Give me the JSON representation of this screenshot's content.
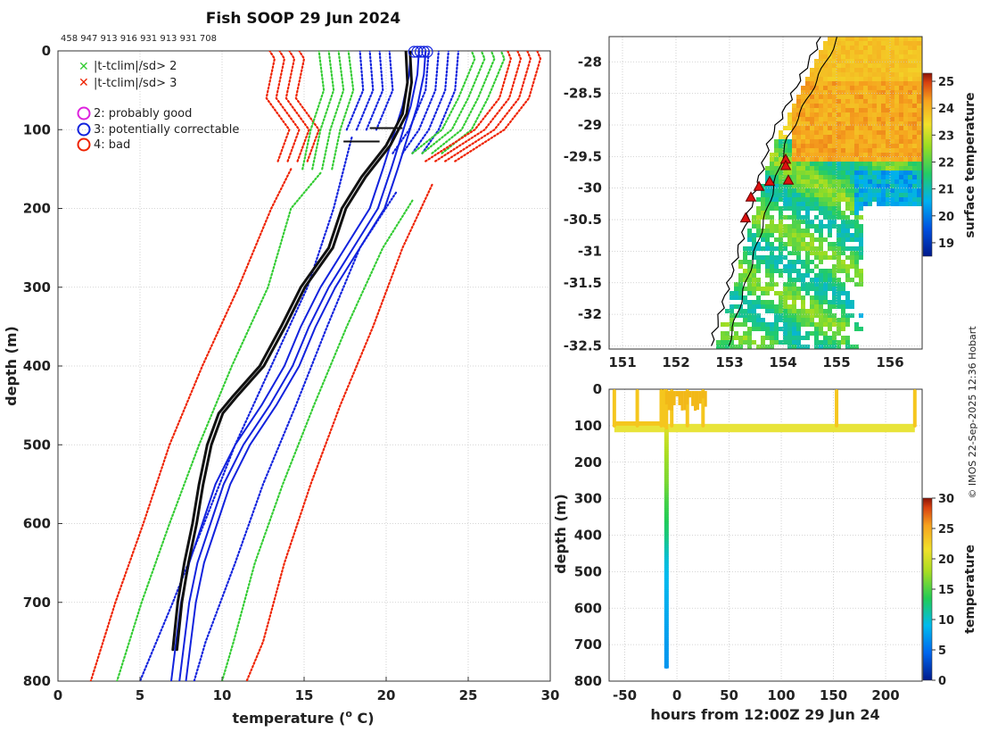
{
  "chart_data": [
    {
      "id": "profile",
      "type": "line",
      "title": "Fish SOOP 29 Jun 2024",
      "profile_ids": "458 947 913 916 931 913 931 708",
      "xlabel": "temperature (",
      "xlabel_sup": "o",
      "xlabel_end": " C)",
      "ylabel": "depth (m)",
      "xlim": [
        0,
        30
      ],
      "ylim": [
        800,
        0
      ],
      "xticks": [
        "0",
        "5",
        "10",
        "15",
        "20",
        "25",
        "30"
      ],
      "yticks": [
        "0",
        "100",
        "200",
        "300",
        "400",
        "500",
        "600",
        "700",
        "800"
      ],
      "legend": {
        "x2": "|t-tclim|/sd> 2",
        "x3": "|t-tclim|/sd> 3",
        "q2": "2: probably good",
        "q3": "3: potentially correctable",
        "q4": "4: bad"
      },
      "colors": {
        "sd2": "#33cc33",
        "sd3": "#ee2200",
        "obs": "#111111",
        "corr": "#1122dd",
        "q2": "#dd22dd"
      },
      "series": [
        {
          "name": "clim -3sd",
          "style": "dotted-red",
          "points": [
            [
              14.0,
              140
            ],
            [
              14.7,
              100
            ],
            [
              13.3,
              60
            ],
            [
              13.8,
              10
            ],
            [
              13.5,
              0
            ]
          ]
        },
        {
          "name": "clim -3sd deep",
          "style": "dotted-red",
          "points": [
            [
              14.2,
              150
            ],
            [
              13.0,
              200
            ],
            [
              11.0,
              300
            ],
            [
              8.8,
              400
            ],
            [
              6.8,
              500
            ],
            [
              5.2,
              600
            ],
            [
              3.5,
              700
            ],
            [
              2.0,
              800
            ]
          ]
        },
        {
          "name": "clim -2sd",
          "style": "dotted-green",
          "points": [
            [
              15.5,
              150
            ],
            [
              16.0,
              100
            ],
            [
              16.8,
              50
            ],
            [
              16.5,
              0
            ]
          ]
        },
        {
          "name": "clim -2sd deep",
          "style": "dotted-green",
          "points": [
            [
              16.0,
              155
            ],
            [
              14.2,
              200
            ],
            [
              12.8,
              300
            ],
            [
              10.6,
              400
            ],
            [
              8.6,
              500
            ],
            [
              6.8,
              600
            ],
            [
              5.1,
              700
            ],
            [
              3.6,
              800
            ]
          ]
        },
        {
          "name": "clim -1sd",
          "style": "dotted-blue",
          "points": [
            [
              18.2,
              100
            ],
            [
              19.2,
              50
            ],
            [
              19.0,
              0
            ]
          ]
        },
        {
          "name": "clim -1sd deep",
          "style": "dotted-blue",
          "points": [
            [
              17.9,
              110
            ],
            [
              16.8,
              200
            ],
            [
              15.2,
              300
            ],
            [
              13.0,
              400
            ],
            [
              10.8,
              500
            ],
            [
              8.9,
              600
            ],
            [
              7.0,
              700
            ],
            [
              5.0,
              800
            ]
          ]
        },
        {
          "name": "clim +1sd",
          "style": "dotted-blue",
          "points": [
            [
              21.0,
              130
            ],
            [
              22.0,
              100
            ],
            [
              23.0,
              50
            ],
            [
              23.2,
              0
            ]
          ]
        },
        {
          "name": "clim +1sd deep",
          "style": "dotted-blue",
          "points": [
            [
              20.6,
              180
            ],
            [
              18.4,
              250
            ],
            [
              16.4,
              350
            ],
            [
              14.5,
              450
            ],
            [
              12.5,
              550
            ],
            [
              10.8,
              650
            ],
            [
              9.0,
              750
            ],
            [
              8.3,
              800
            ]
          ]
        },
        {
          "name": "clim +2sd",
          "style": "dotted-green",
          "points": [
            [
              22.2,
              130
            ],
            [
              24.0,
              100
            ],
            [
              25.0,
              60
            ],
            [
              26.0,
              10
            ],
            [
              25.8,
              0
            ]
          ]
        },
        {
          "name": "clim +2sd deep",
          "style": "dotted-green",
          "points": [
            [
              21.6,
              190
            ],
            [
              19.8,
              250
            ],
            [
              17.6,
              350
            ],
            [
              15.6,
              450
            ],
            [
              13.7,
              550
            ],
            [
              12.0,
              650
            ],
            [
              10.7,
              750
            ],
            [
              10.0,
              800
            ]
          ]
        },
        {
          "name": "clim +3sd",
          "style": "dotted-red",
          "points": [
            [
              23.0,
              140
            ],
            [
              26.0,
              100
            ],
            [
              27.5,
              60
            ],
            [
              28.2,
              10
            ],
            [
              28.0,
              0
            ]
          ]
        },
        {
          "name": "clim +3sd deep",
          "style": "dotted-red",
          "points": [
            [
              22.8,
              170
            ],
            [
              21.0,
              250
            ],
            [
              19.2,
              350
            ],
            [
              17.2,
              450
            ],
            [
              15.4,
              550
            ],
            [
              13.8,
              650
            ],
            [
              12.5,
              750
            ],
            [
              11.5,
              800
            ]
          ]
        },
        {
          "name": "profile corrected",
          "style": "solid-blue",
          "points": [
            [
              21.5,
              0
            ],
            [
              21.4,
              30
            ],
            [
              21.0,
              70
            ],
            [
              20.4,
              110
            ],
            [
              19.8,
              150
            ],
            [
              19.0,
              200
            ],
            [
              17.5,
              250
            ],
            [
              16.0,
              300
            ],
            [
              14.8,
              350
            ],
            [
              13.8,
              400
            ],
            [
              12.4,
              450
            ],
            [
              10.8,
              500
            ],
            [
              9.6,
              550
            ],
            [
              8.8,
              600
            ],
            [
              8.0,
              650
            ],
            [
              7.5,
              700
            ],
            [
              7.2,
              750
            ],
            [
              6.9,
              800
            ]
          ]
        },
        {
          "name": "profile observed",
          "style": "solid-black",
          "points": [
            [
              21.2,
              0
            ],
            [
              21.3,
              40
            ],
            [
              21.0,
              80
            ],
            [
              20.0,
              120
            ],
            [
              18.5,
              160
            ],
            [
              17.3,
              200
            ],
            [
              16.5,
              250
            ],
            [
              14.8,
              300
            ],
            [
              13.6,
              350
            ],
            [
              12.3,
              400
            ],
            [
              10.6,
              440
            ],
            [
              9.8,
              460
            ],
            [
              9.1,
              500
            ],
            [
              8.6,
              550
            ],
            [
              8.2,
              600
            ],
            [
              7.7,
              650
            ],
            [
              7.3,
              700
            ],
            [
              7.0,
              760
            ]
          ]
        }
      ]
    },
    {
      "id": "map",
      "type": "heatmap",
      "colorbar_label": "surface temperature",
      "colorbar_ticks": [
        "19",
        "20",
        "21",
        "22",
        "23",
        "24",
        "25"
      ],
      "clim": [
        18.5,
        25.3
      ],
      "xticks": [
        "151",
        "152",
        "153",
        "154",
        "155",
        "156"
      ],
      "yticks": [
        "-28",
        "-28.5",
        "-29",
        "-29.5",
        "-30",
        "-30.5",
        "-31",
        "-31.5",
        "-32",
        "-32.5"
      ],
      "xlim": [
        150.75,
        156.6
      ],
      "ylim": [
        -32.55,
        -27.6
      ],
      "stations": [
        [
          154.05,
          -29.55
        ],
        [
          154.05,
          -29.65
        ],
        [
          154.1,
          -29.88
        ],
        [
          153.75,
          -29.9
        ],
        [
          153.55,
          -29.98
        ],
        [
          153.4,
          -30.15
        ],
        [
          153.3,
          -30.48
        ]
      ]
    },
    {
      "id": "timeline",
      "type": "scatter",
      "xlabel": "hours from 12:00Z 29 Jun 24",
      "ylabel": "depth (m)",
      "xlim": [
        -65,
        235
      ],
      "ylim": [
        800,
        0
      ],
      "xticks": [
        "-50",
        "0",
        "50",
        "100",
        "150",
        "200"
      ],
      "yticks": [
        "0",
        "100",
        "200",
        "300",
        "400",
        "500",
        "600",
        "700",
        "800"
      ],
      "colorbar_label": "temperature",
      "colorbar_ticks": [
        "0",
        "5",
        "10",
        "15",
        "20",
        "25",
        "30"
      ],
      "drop_hours": [
        -60,
        -38,
        -15,
        -12,
        -10,
        -5,
        10,
        25,
        153,
        228
      ],
      "deep_cast_hour": -10,
      "deep_cast_max_depth": 760
    }
  ],
  "footer": {
    "credit": "© IMOS 22-Sep-2025 12:36 Hobart"
  }
}
